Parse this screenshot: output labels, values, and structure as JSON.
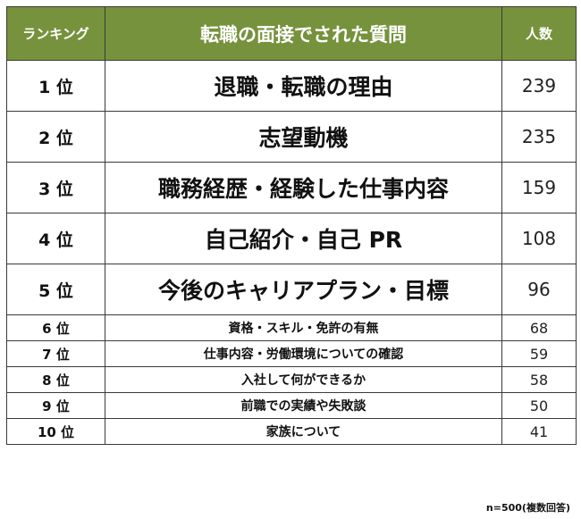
{
  "header": {
    "rank": "ランキング",
    "question": "転職の面接でされた質問",
    "count": "人数"
  },
  "colors": {
    "header_bg": "#76923c",
    "header_text": "#ffffff",
    "border": "#3a3a3a"
  },
  "rows": [
    {
      "rank": "1 位",
      "question": "退職・転職の理由",
      "count": "239"
    },
    {
      "rank": "2 位",
      "question": "志望動機",
      "count": "235"
    },
    {
      "rank": "3 位",
      "question": "職務経歴・経験した仕事内容",
      "count": "159"
    },
    {
      "rank": "4 位",
      "question": "自己紹介・自己 PR",
      "count": "108"
    },
    {
      "rank": "5 位",
      "question": "今後のキャリアプラン・目標",
      "count": "96"
    },
    {
      "rank": "6 位",
      "question": "資格・スキル・免許の有無",
      "count": "68"
    },
    {
      "rank": "7 位",
      "question": "仕事内容・労働環境についての確認",
      "count": "59"
    },
    {
      "rank": "8 位",
      "question": "入社して何ができるか",
      "count": "58"
    },
    {
      "rank": "9 位",
      "question": "前職での実績や失敗談",
      "count": "50"
    },
    {
      "rank": "10 位",
      "question": "家族について",
      "count": "41"
    }
  ],
  "footnote": "n=500(複数回答)"
}
